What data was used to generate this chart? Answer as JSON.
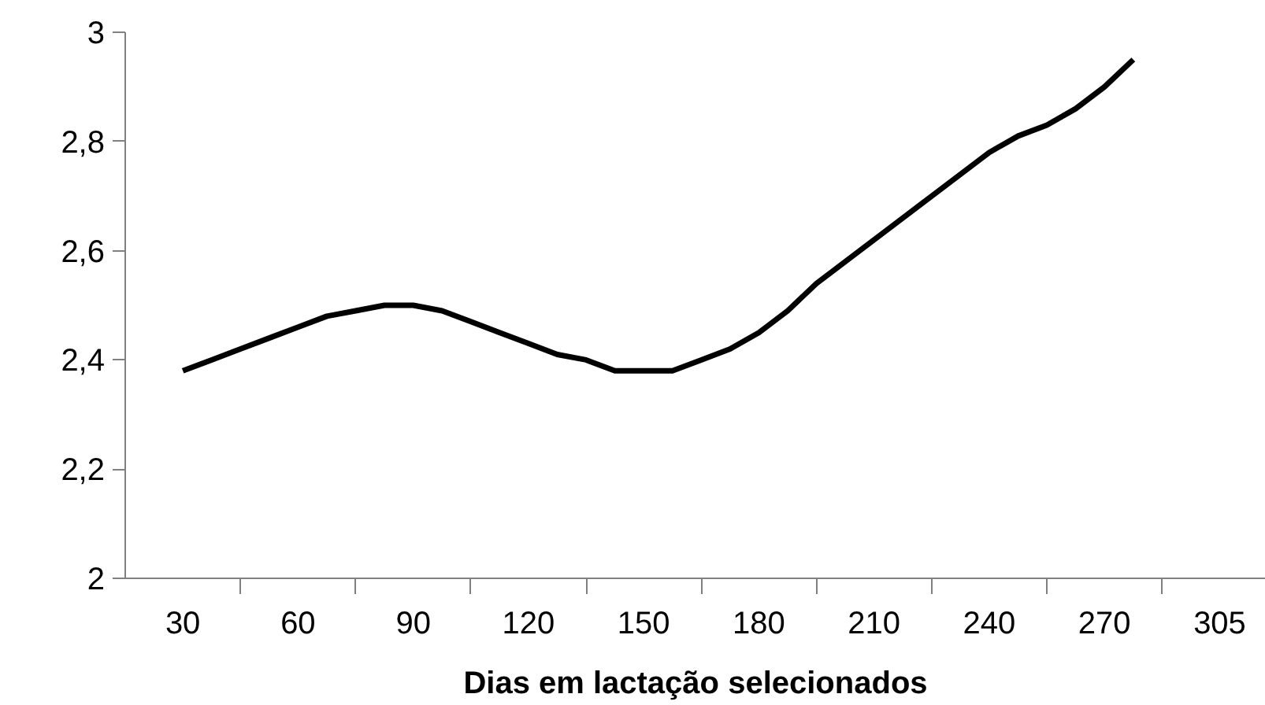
{
  "chart_data": {
    "type": "line",
    "xlabel": "Dias em lactação selecionados",
    "categories": [
      "30",
      null,
      null,
      null,
      "60",
      null,
      null,
      null,
      "90",
      null,
      null,
      null,
      "120",
      null,
      null,
      null,
      "150",
      null,
      null,
      null,
      "180",
      null,
      null,
      null,
      "210",
      null,
      null,
      null,
      "240",
      null,
      null,
      null,
      "270",
      null,
      null,
      null,
      "305"
    ],
    "series": [
      {
        "color": "#000000",
        "values": [
          2.38,
          2.4,
          2.42,
          2.44,
          2.46,
          2.48,
          2.49,
          2.5,
          2.5,
          2.49,
          2.47,
          2.45,
          2.43,
          2.41,
          2.4,
          2.38,
          2.38,
          2.38,
          2.4,
          2.42,
          2.45,
          2.49,
          2.54,
          2.58,
          2.62,
          2.66,
          2.7,
          2.74,
          2.78,
          2.81,
          2.83,
          2.86,
          2.9,
          2.95,
          null,
          null,
          null
        ]
      }
    ],
    "ylim": [
      2,
      3
    ],
    "yticks": [
      2,
      {
        "value": 2.2,
        "label": "2,2"
      },
      {
        "value": 2.4,
        "label": "2,4"
      },
      {
        "value": 2.6,
        "label": "2,6"
      },
      {
        "value": 2.8,
        "label": "2,8"
      },
      3
    ],
    "grid": false,
    "marker": "none",
    "line_style": "solid"
  }
}
